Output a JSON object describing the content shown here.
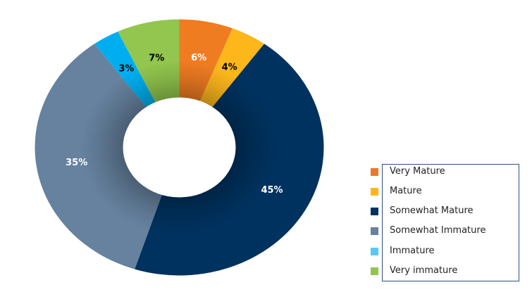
{
  "chart_data": {
    "type": "pie",
    "subtype": "donut",
    "title": "",
    "categories": [
      "Very Mature",
      "Mature",
      "Somewhat Mature",
      "Somewhat Immature",
      "Immature",
      "Very immature"
    ],
    "values": [
      6,
      4,
      45,
      35,
      3,
      7
    ],
    "unit": "%",
    "labels": [
      "6%",
      "4%",
      "45%",
      "35%",
      "3%",
      "7%"
    ],
    "colors": [
      "#F07C22",
      "#FDB71B",
      "#00325F",
      "#66829F",
      "#00AEEF",
      "#92C64E"
    ],
    "legend_colors": [
      "#E8792A",
      "#FDB71B",
      "#00325F",
      "#66829F",
      "#5BC8F0",
      "#92C64E"
    ],
    "label_colors": [
      "#FFFFFF",
      "#000000",
      "#FFFFFF",
      "#FFFFFF",
      "#000000",
      "#000000"
    ],
    "legend_position": "right-bottom",
    "start_angle_deg": 0,
    "direction": "clockwise"
  },
  "legend": {
    "items": [
      {
        "label": "Very Mature"
      },
      {
        "label": "Mature"
      },
      {
        "label": "Somewhat Mature"
      },
      {
        "label": "Somewhat Immature"
      },
      {
        "label": "Immature"
      },
      {
        "label": "Very immature"
      }
    ]
  }
}
